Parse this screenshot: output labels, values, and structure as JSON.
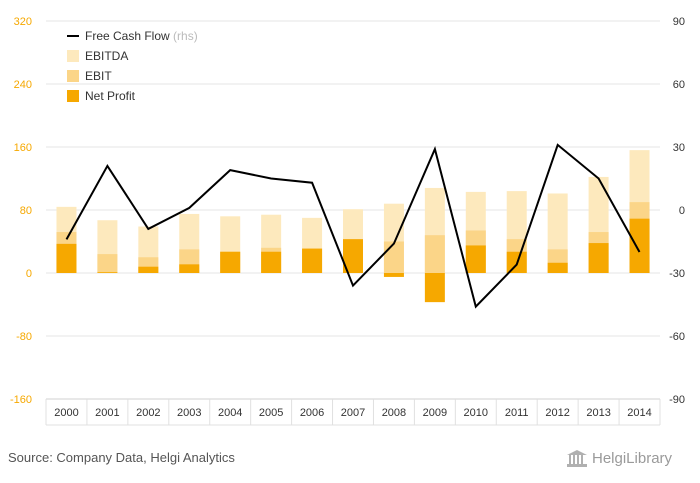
{
  "chart_data": {
    "type": "bar",
    "categories": [
      "2000",
      "2001",
      "2002",
      "2003",
      "2004",
      "2005",
      "2006",
      "2007",
      "2008",
      "2009",
      "2010",
      "2011",
      "2012",
      "2013",
      "2014"
    ],
    "series": [
      {
        "name": "EBITDA",
        "type": "bar",
        "axis": "left",
        "color": "#fde9bd",
        "values": [
          84,
          67,
          59,
          75,
          72,
          74,
          70,
          81,
          88,
          108,
          103,
          104,
          101,
          122,
          156
        ]
      },
      {
        "name": "EBIT",
        "type": "bar",
        "axis": "left",
        "color": "#fbd588",
        "values": [
          52,
          24,
          20,
          30,
          27,
          32,
          31,
          42,
          40,
          48,
          54,
          43,
          30,
          52,
          90
        ]
      },
      {
        "name": "Net Profit",
        "type": "bar",
        "axis": "left",
        "color": "#f6a800",
        "values": [
          37,
          1,
          8,
          11,
          27,
          27,
          31,
          43,
          -5,
          -37,
          35,
          27,
          13,
          38,
          69
        ]
      },
      {
        "name": "Free Cash Flow",
        "type": "line",
        "axis": "right",
        "color": "#000000",
        "values": [
          -14,
          21,
          -9,
          1,
          19,
          15,
          13,
          -36,
          -16,
          29,
          -46,
          -26,
          31,
          15,
          -20
        ]
      }
    ],
    "legend": {
      "position": "top-left",
      "rhs_note": "(rhs)"
    },
    "left_axis": {
      "ylim": [
        -160,
        320
      ],
      "ticks": [
        -160,
        -80,
        0,
        80,
        160,
        240,
        320
      ],
      "color": "#f6a800"
    },
    "right_axis": {
      "ylim": [
        -90,
        90
      ],
      "ticks": [
        -90,
        -60,
        -30,
        0,
        30,
        60,
        90
      ]
    },
    "grid": true
  },
  "footer": {
    "source": "Source: Company Data, Helgi Analytics",
    "logo_text": "HelgiLibrary"
  }
}
